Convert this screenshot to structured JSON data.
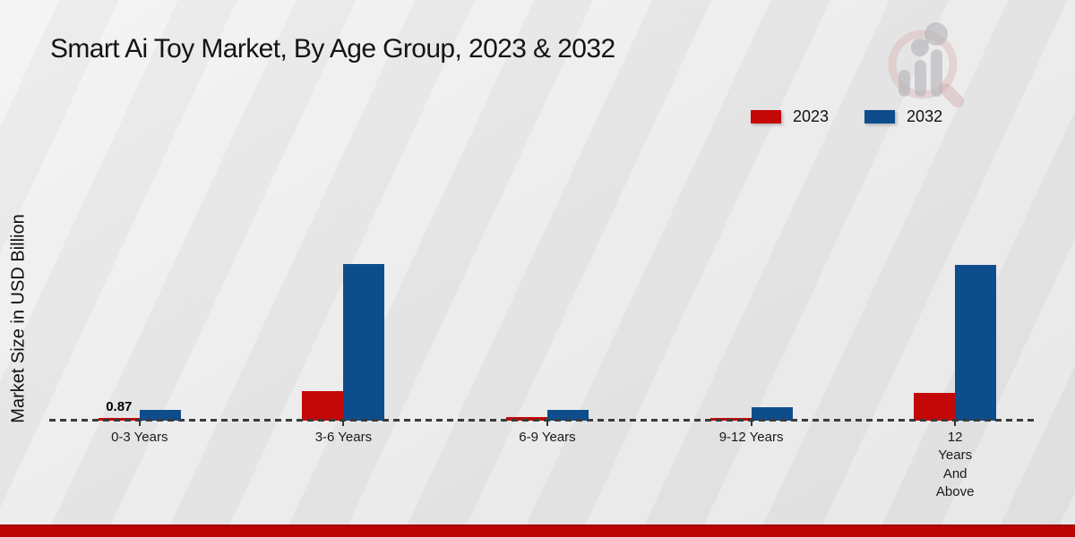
{
  "title": "Smart Ai Toy Market, By Age Group, 2023 & 2032",
  "page": {
    "background_color": "#eaeaea",
    "footer_bar_color": "#ba0404"
  },
  "watermark": {
    "name": "market-research-future-logo"
  },
  "legend": {
    "items": [
      {
        "label": "2023",
        "color": "#c40808"
      },
      {
        "label": "2032",
        "color": "#0d4d8c"
      }
    ]
  },
  "chart_data": {
    "type": "bar",
    "title": "Smart Ai Toy Market, By Age Group, 2023 & 2032",
    "xlabel": "",
    "ylabel": "Market Size in USD Billion",
    "units": "USD Billion",
    "categories": [
      "0-3 Years",
      "3-6 Years",
      "6-9 Years",
      "9-12 Years",
      "12 Years And Above"
    ],
    "series": [
      {
        "name": "2023",
        "color": "#c40808",
        "values": [
          0.87,
          9.6,
          1.2,
          0.9,
          9.0
        ]
      },
      {
        "name": "2032",
        "color": "#0d4d8c",
        "values": [
          3.5,
          50.8,
          3.5,
          4.4,
          50.5
        ]
      }
    ],
    "value_labels": [
      {
        "series": "2023",
        "category_index": 0,
        "text": "0.87"
      }
    ],
    "ylim": [
      0,
      55
    ],
    "legend_position": "top-right",
    "baseline_style": "dashed",
    "grid": false
  }
}
